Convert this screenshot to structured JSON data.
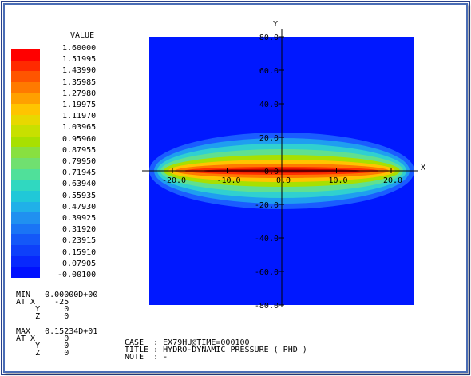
{
  "legend": {
    "title": "VALUE",
    "values": [
      "1.60000",
      "1.51995",
      "1.43990",
      "1.35985",
      "1.27980",
      "1.19975",
      "1.11970",
      "1.03965",
      "0.95960",
      "0.87955",
      "0.79950",
      "0.71945",
      "0.63940",
      "0.55935",
      "0.47930",
      "0.39925",
      "0.31920",
      "0.23915",
      "0.15910",
      "0.07905",
      "-0.00100"
    ],
    "colors": [
      "#ff0000",
      "#ff2a00",
      "#ff5500",
      "#ff7a00",
      "#ffa000",
      "#ffc400",
      "#e8d800",
      "#c8e000",
      "#a8e000",
      "#88e040",
      "#70e070",
      "#50e09a",
      "#30d8c0",
      "#20c8d8",
      "#20b0e8",
      "#2090f0",
      "#1a74f5",
      "#1458f8",
      "#0e40fa",
      "#0828fd",
      "#0010ff"
    ]
  },
  "min": {
    "row1": "MIN   0.00000D+00",
    "row2": "AT X    -25",
    "row3": "    Y     0",
    "row4": "    Z     0"
  },
  "max": {
    "row1": "MAX   0.15234D+01",
    "row2": "AT X      0",
    "row3": "    Y     0",
    "row4": "    Z     0"
  },
  "info": {
    "case": "CASE  : EX79HU@TIME=000100",
    "title": "TITLE : HYDRO-DYNAMIC PRESSURE ( PHD )",
    "note": "NOTE  : -"
  },
  "plot": {
    "x_axis_label": "X",
    "y_axis_label": "Y",
    "x_ticks": [
      "-20.0",
      "-10.0",
      "0.0",
      "10.0",
      "20.0"
    ],
    "y_ticks": [
      "80.0",
      "60.0",
      "40.0",
      "20.0",
      "0.0",
      "-20.0",
      "-40.0",
      "-60.0",
      "-80.0"
    ],
    "background_color": "#0018ff"
  }
}
